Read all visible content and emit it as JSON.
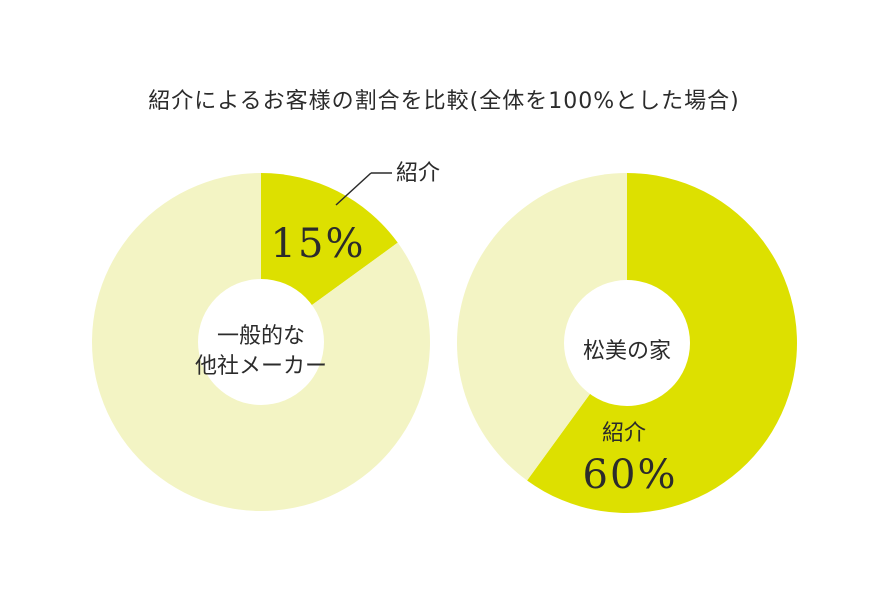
{
  "chart_data": [
    {
      "type": "pie",
      "title": "紹介によるお客様の割合を比較(全体を100%とした場合)",
      "center_label": [
        "一般的な",
        "他社メーカー"
      ],
      "slices": [
        {
          "label": "紹介",
          "value": 15,
          "value_label": "15%",
          "color": "#dde000"
        },
        {
          "label": "",
          "value": 85,
          "value_label": "",
          "color": "#f3f4c4"
        }
      ]
    },
    {
      "type": "pie",
      "center_label": [
        "松美の家"
      ],
      "slices": [
        {
          "label": "紹介",
          "value": 60,
          "value_label": "60%",
          "color": "#dde000"
        },
        {
          "label": "",
          "value": 40,
          "value_label": "",
          "color": "#f3f4c4"
        }
      ]
    }
  ]
}
